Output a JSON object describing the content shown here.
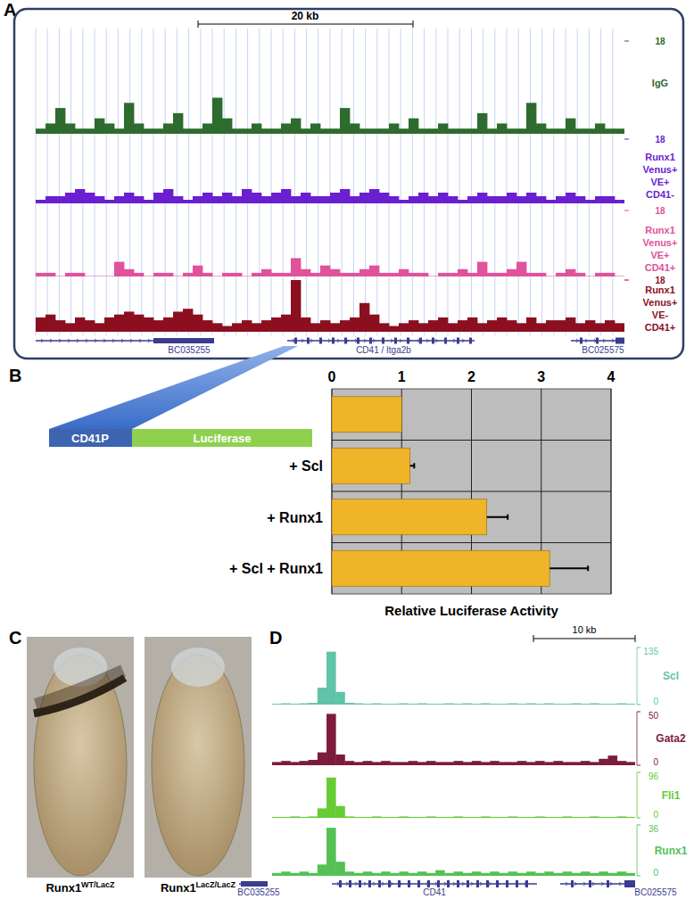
{
  "panels": {
    "A": {
      "label": "A",
      "scale_bar": "20 kb",
      "tracks": [
        {
          "name": [
            "IgG"
          ],
          "color": "#2e6b2e",
          "ylim": [
            0,
            18
          ],
          "yticks": [
            18
          ],
          "values": [
            1,
            2,
            5,
            2,
            1,
            1,
            3,
            2,
            1,
            6,
            2,
            1,
            1,
            2,
            4,
            1,
            1,
            2,
            7,
            3,
            1,
            1,
            2,
            1,
            1,
            2,
            3,
            1,
            2,
            1,
            1,
            5,
            2,
            1,
            1,
            1,
            2,
            1,
            3,
            1,
            1,
            2,
            1,
            1,
            1,
            4,
            1,
            2,
            1,
            1,
            6,
            2,
            1,
            1,
            3,
            1,
            1,
            2,
            1,
            1
          ]
        },
        {
          "name": [
            "Runx1",
            "Venus+",
            "VE+",
            "CD41-"
          ],
          "color": "#6a1fd1",
          "ylim": [
            0,
            18
          ],
          "yticks": [
            18
          ],
          "values": [
            1,
            2,
            2,
            3,
            4,
            3,
            2,
            1,
            2,
            3,
            2,
            1,
            3,
            4,
            2,
            1,
            2,
            3,
            2,
            3,
            2,
            4,
            3,
            2,
            3,
            4,
            2,
            3,
            2,
            2,
            3,
            4,
            2,
            3,
            4,
            3,
            2,
            1,
            2,
            3,
            2,
            3,
            2,
            1,
            2,
            3,
            2,
            2,
            3,
            2,
            3,
            2,
            1,
            2,
            3,
            2,
            1,
            2,
            2,
            1
          ]
        },
        {
          "name": [
            "Runx1",
            "Venus+",
            "VE+",
            "CD41+"
          ],
          "color": "#e0529c",
          "ylim": [
            0,
            18
          ],
          "yticks": [
            18
          ],
          "values": [
            1,
            1,
            0,
            1,
            1,
            0,
            0,
            0,
            4,
            2,
            1,
            0,
            1,
            1,
            0,
            1,
            3,
            1,
            0,
            1,
            1,
            0,
            1,
            2,
            1,
            1,
            5,
            2,
            1,
            3,
            2,
            1,
            1,
            2,
            3,
            1,
            1,
            2,
            1,
            1,
            0,
            1,
            1,
            2,
            1,
            4,
            1,
            1,
            2,
            4,
            1,
            1,
            0,
            1,
            2,
            1,
            0,
            1,
            1,
            0
          ]
        },
        {
          "name": [
            "Runx1",
            "Venus+",
            "VE-",
            "CD41+"
          ],
          "color": "#8b0f1f",
          "ylim": [
            0,
            18
          ],
          "yticks": [
            18
          ],
          "values": [
            5,
            6,
            4,
            3,
            5,
            4,
            3,
            5,
            6,
            7,
            6,
            5,
            4,
            5,
            7,
            8,
            6,
            4,
            3,
            2,
            3,
            4,
            3,
            4,
            5,
            6,
            18,
            5,
            3,
            4,
            3,
            4,
            5,
            10,
            6,
            3,
            2,
            3,
            4,
            3,
            4,
            5,
            3,
            4,
            5,
            3,
            4,
            5,
            4,
            3,
            5,
            3,
            4,
            4,
            5,
            3,
            4,
            3,
            4,
            3
          ]
        }
      ],
      "genes": [
        "BC035255",
        "CD41 / Itga2b",
        "BC025575"
      ]
    },
    "B": {
      "label": "B",
      "construct": [
        "CD41P",
        "Luciferase"
      ]
    },
    "C": {
      "label": "C",
      "embryos": [
        {
          "base": "Runx1",
          "sup": "WT/LacZ",
          "stained": true
        },
        {
          "base": "Runx1",
          "sup": "LacZ/LacZ",
          "stained": false
        }
      ]
    },
    "D": {
      "label": "D",
      "scale_bar": "10 kb",
      "tracks": [
        {
          "name": "Scl",
          "color": "#5fc4a8",
          "ylim": [
            0,
            135
          ],
          "yticks": [
            0,
            135
          ],
          "values": [
            2,
            3,
            2,
            3,
            4,
            40,
            125,
            30,
            4,
            3,
            2,
            3,
            2,
            2,
            3,
            2,
            3,
            2,
            2,
            3,
            2,
            3,
            2,
            3,
            2,
            2,
            3,
            2,
            3,
            2,
            3,
            2,
            2,
            3,
            2,
            3,
            2,
            2,
            3,
            2
          ]
        },
        {
          "name": "Gata2",
          "color": "#7d1b3c",
          "ylim": [
            0,
            50
          ],
          "yticks": [
            0,
            50
          ],
          "values": [
            3,
            4,
            3,
            4,
            5,
            12,
            48,
            10,
            4,
            3,
            4,
            3,
            4,
            3,
            3,
            4,
            3,
            4,
            3,
            3,
            4,
            3,
            4,
            3,
            4,
            3,
            3,
            4,
            3,
            4,
            3,
            4,
            3,
            3,
            4,
            3,
            6,
            9,
            4,
            3
          ]
        },
        {
          "name": "Fli1",
          "color": "#66cc33",
          "ylim": [
            0,
            96
          ],
          "yticks": [
            0,
            96
          ],
          "values": [
            2,
            2,
            3,
            2,
            3,
            20,
            85,
            25,
            3,
            2,
            2,
            3,
            2,
            2,
            3,
            2,
            2,
            3,
            2,
            2,
            3,
            2,
            2,
            3,
            2,
            2,
            3,
            2,
            2,
            3,
            2,
            2,
            3,
            2,
            2,
            3,
            2,
            2,
            3,
            2
          ]
        },
        {
          "name": "Runx1",
          "color": "#55c055",
          "ylim": [
            0,
            36
          ],
          "yticks": [
            0,
            36
          ],
          "values": [
            2,
            3,
            2,
            3,
            2,
            8,
            34,
            10,
            3,
            2,
            3,
            2,
            3,
            2,
            3,
            2,
            3,
            2,
            4,
            2,
            3,
            2,
            3,
            2,
            3,
            2,
            3,
            2,
            3,
            2,
            3,
            2,
            3,
            2,
            3,
            2,
            3,
            2,
            3,
            2
          ]
        }
      ],
      "genes": [
        "BC035255",
        "CD41",
        "BC025575"
      ]
    }
  },
  "chart_data": {
    "type": "bar",
    "orientation": "horizontal",
    "grid": true,
    "color": "#f0b429",
    "categories": [
      null,
      "+ Scl",
      "+ Runx1",
      "+ Scl + Runx1"
    ],
    "values": [
      1.0,
      1.12,
      2.22,
      3.12
    ],
    "errors": [
      null,
      0.06,
      0.3,
      0.55
    ],
    "xlim": [
      0,
      4
    ],
    "xticks": [
      0,
      1,
      2,
      3,
      4
    ],
    "x_label": "Relative Luciferase Activity"
  }
}
